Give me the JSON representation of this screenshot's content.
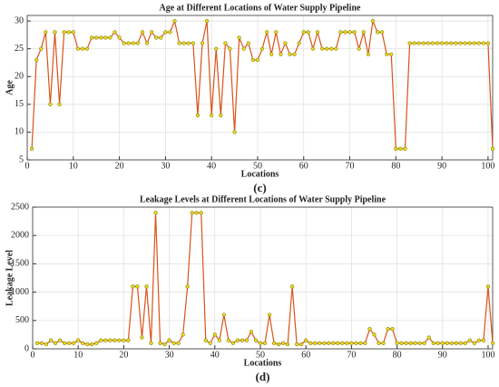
{
  "chart_data": [
    {
      "type": "line",
      "title": "Age at Different Locations of Water Supply Pipeline",
      "xlabel": "Locations",
      "ylabel": "Age",
      "caption": "(c)",
      "x": [
        1,
        2,
        3,
        4,
        5,
        6,
        7,
        8,
        9,
        10,
        11,
        12,
        13,
        14,
        15,
        16,
        17,
        18,
        19,
        20,
        21,
        22,
        23,
        24,
        25,
        26,
        27,
        28,
        29,
        30,
        31,
        32,
        33,
        34,
        35,
        36,
        37,
        38,
        39,
        40,
        41,
        42,
        43,
        44,
        45,
        46,
        47,
        48,
        49,
        50,
        51,
        52,
        53,
        54,
        55,
        56,
        57,
        58,
        59,
        60,
        61,
        62,
        63,
        64,
        65,
        66,
        67,
        68,
        69,
        70,
        71,
        72,
        73,
        74,
        75,
        76,
        77,
        78,
        79,
        80,
        81,
        82,
        83,
        84,
        85,
        86,
        87,
        88,
        89,
        90,
        91,
        92,
        93,
        94,
        95,
        96,
        97,
        98,
        99,
        100,
        101
      ],
      "values": [
        7,
        23,
        25,
        28,
        15,
        28,
        15,
        28,
        28,
        28,
        25,
        25,
        25,
        27,
        27,
        27,
        27,
        27,
        28,
        27,
        26,
        26,
        26,
        26,
        28,
        26,
        28,
        27,
        27,
        28,
        28,
        30,
        26,
        26,
        26,
        26,
        13,
        26,
        30,
        13,
        25,
        13,
        26,
        25,
        10,
        27,
        25,
        26,
        23,
        23,
        25,
        28,
        24,
        28,
        24,
        26,
        24,
        24,
        26,
        28,
        28,
        25,
        28,
        25,
        25,
        25,
        25,
        28,
        28,
        28,
        28,
        25,
        28,
        24,
        30,
        28,
        28,
        24,
        24,
        7,
        7,
        7,
        26,
        26,
        26,
        26,
        26,
        26,
        26,
        26,
        26,
        26,
        26,
        26,
        26,
        26,
        26,
        26,
        26,
        26,
        7
      ],
      "color": "#d95319",
      "marker_color": "#e8e020",
      "xlim": [
        0,
        101
      ],
      "ylim": [
        5,
        31
      ],
      "xticks": [
        0,
        10,
        20,
        30,
        40,
        50,
        60,
        70,
        80,
        90,
        100
      ],
      "yticks": [
        5,
        10,
        15,
        20,
        25,
        30
      ],
      "grid": true
    },
    {
      "type": "line",
      "title": "Leakage Levels at Different Locations of Water Supply Pipeline",
      "xlabel": "Locations",
      "ylabel": "Leakage Level",
      "caption": "(d)",
      "x": [
        1,
        2,
        3,
        4,
        5,
        6,
        7,
        8,
        9,
        10,
        11,
        12,
        13,
        14,
        15,
        16,
        17,
        18,
        19,
        20,
        21,
        22,
        23,
        24,
        25,
        26,
        27,
        28,
        29,
        30,
        31,
        32,
        33,
        34,
        35,
        36,
        37,
        38,
        39,
        40,
        41,
        42,
        43,
        44,
        45,
        46,
        47,
        48,
        49,
        50,
        51,
        52,
        53,
        54,
        55,
        56,
        57,
        58,
        59,
        60,
        61,
        62,
        63,
        64,
        65,
        66,
        67,
        68,
        69,
        70,
        71,
        72,
        73,
        74,
        75,
        76,
        77,
        78,
        79,
        80,
        81,
        82,
        83,
        84,
        85,
        86,
        87,
        88,
        89,
        90,
        91,
        92,
        93,
        94,
        95,
        96,
        97,
        98,
        99,
        100,
        101
      ],
      "values": [
        100,
        100,
        80,
        150,
        100,
        150,
        100,
        100,
        100,
        150,
        100,
        80,
        80,
        100,
        150,
        150,
        150,
        150,
        150,
        150,
        150,
        1100,
        1100,
        200,
        1100,
        100,
        2400,
        100,
        80,
        150,
        100,
        100,
        250,
        1100,
        2400,
        2400,
        2400,
        150,
        100,
        250,
        150,
        600,
        150,
        100,
        150,
        150,
        150,
        300,
        150,
        100,
        100,
        600,
        100,
        80,
        100,
        80,
        1100,
        80,
        80,
        150,
        100,
        100,
        100,
        100,
        100,
        100,
        100,
        100,
        100,
        100,
        100,
        100,
        100,
        350,
        250,
        100,
        100,
        350,
        350,
        100,
        100,
        100,
        100,
        100,
        100,
        100,
        200,
        100,
        100,
        100,
        100,
        100,
        100,
        100,
        100,
        150,
        100,
        150,
        150,
        1100,
        100
      ],
      "color": "#d95319",
      "marker_color": "#e8e020",
      "xlim": [
        0,
        101
      ],
      "ylim": [
        0,
        2500
      ],
      "xticks": [
        0,
        10,
        20,
        30,
        40,
        50,
        60,
        70,
        80,
        90,
        100
      ],
      "yticks": [
        0,
        500,
        1000,
        1500,
        2000,
        2500
      ],
      "grid": true
    }
  ]
}
